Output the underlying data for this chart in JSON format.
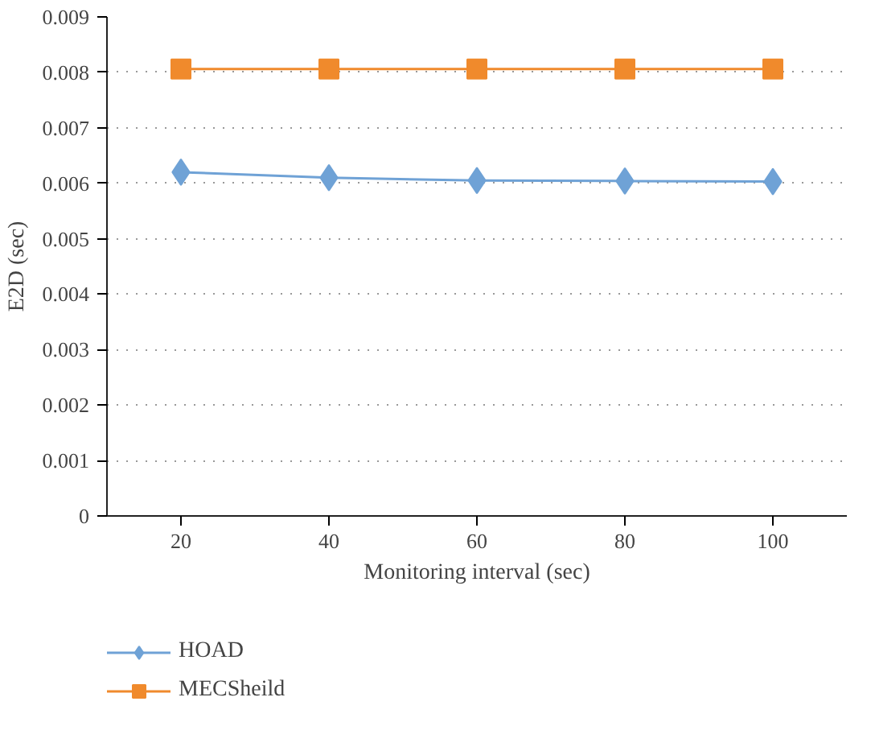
{
  "chart_data": {
    "type": "line",
    "xlabel": "Monitoring interval (sec)",
    "ylabel": "E2D (sec)",
    "categories": [
      "20",
      "40",
      "60",
      "80",
      "100"
    ],
    "series": [
      {
        "name": "HOAD",
        "color": "#6fa2d6",
        "marker": "diamond",
        "values": [
          0.0062,
          0.0061,
          0.00605,
          0.00604,
          0.00603
        ]
      },
      {
        "name": "MECSheild",
        "color": "#f08a2c",
        "marker": "square",
        "values": [
          0.00806,
          0.00806,
          0.00806,
          0.00806,
          0.00806
        ]
      }
    ],
    "ylim": [
      0,
      0.009
    ],
    "yticks": [
      0,
      0.001,
      0.002,
      0.003,
      0.004,
      0.005,
      0.006,
      0.007,
      0.008,
      0.009
    ],
    "grid": "y",
    "legend": "bottom left",
    "line_style": "solid"
  }
}
